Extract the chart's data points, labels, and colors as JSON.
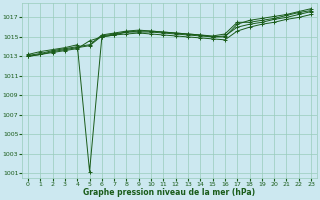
{
  "xlabel": "Graphe pression niveau de la mer (hPa)",
  "bg_color": "#cce8f0",
  "grid_color": "#99ccbb",
  "line_color": "#1a5c1a",
  "xlim": [
    -0.5,
    23.5
  ],
  "ylim": [
    1000.5,
    1018.5
  ],
  "yticks": [
    1001,
    1003,
    1005,
    1007,
    1009,
    1011,
    1013,
    1015,
    1017
  ],
  "xticks": [
    0,
    1,
    2,
    3,
    4,
    5,
    6,
    7,
    8,
    9,
    10,
    11,
    12,
    13,
    14,
    15,
    16,
    17,
    18,
    19,
    20,
    21,
    22,
    23
  ],
  "series": [
    [
      1013.2,
      1013.5,
      1013.7,
      1013.9,
      1014.2,
      1001.2,
      1015.0,
      1015.2,
      1015.5,
      1015.6,
      1015.6,
      1015.5,
      1015.4,
      1015.3,
      1015.2,
      1015.0,
      1015.0,
      1016.3,
      1016.7,
      1016.9,
      1017.1,
      1017.3,
      1017.6,
      1017.9
    ],
    [
      1013.1,
      1013.3,
      1013.6,
      1013.8,
      1014.0,
      1014.2,
      1015.2,
      1015.4,
      1015.6,
      1015.7,
      1015.6,
      1015.5,
      1015.4,
      1015.3,
      1015.2,
      1015.1,
      1015.3,
      1016.5,
      1016.5,
      1016.7,
      1016.9,
      1017.2,
      1017.5,
      1017.7
    ],
    [
      1013.0,
      1013.2,
      1013.5,
      1013.7,
      1013.9,
      1014.1,
      1015.1,
      1015.3,
      1015.5,
      1015.5,
      1015.5,
      1015.4,
      1015.3,
      1015.2,
      1015.1,
      1015.0,
      1015.1,
      1016.0,
      1016.3,
      1016.5,
      1016.8,
      1017.0,
      1017.3,
      1017.6
    ],
    [
      1013.0,
      1013.2,
      1013.4,
      1013.6,
      1013.8,
      1014.6,
      1015.0,
      1015.2,
      1015.3,
      1015.4,
      1015.3,
      1015.2,
      1015.1,
      1015.0,
      1014.9,
      1014.8,
      1014.7,
      1015.6,
      1016.0,
      1016.3,
      1016.5,
      1016.8,
      1017.0,
      1017.3
    ]
  ]
}
